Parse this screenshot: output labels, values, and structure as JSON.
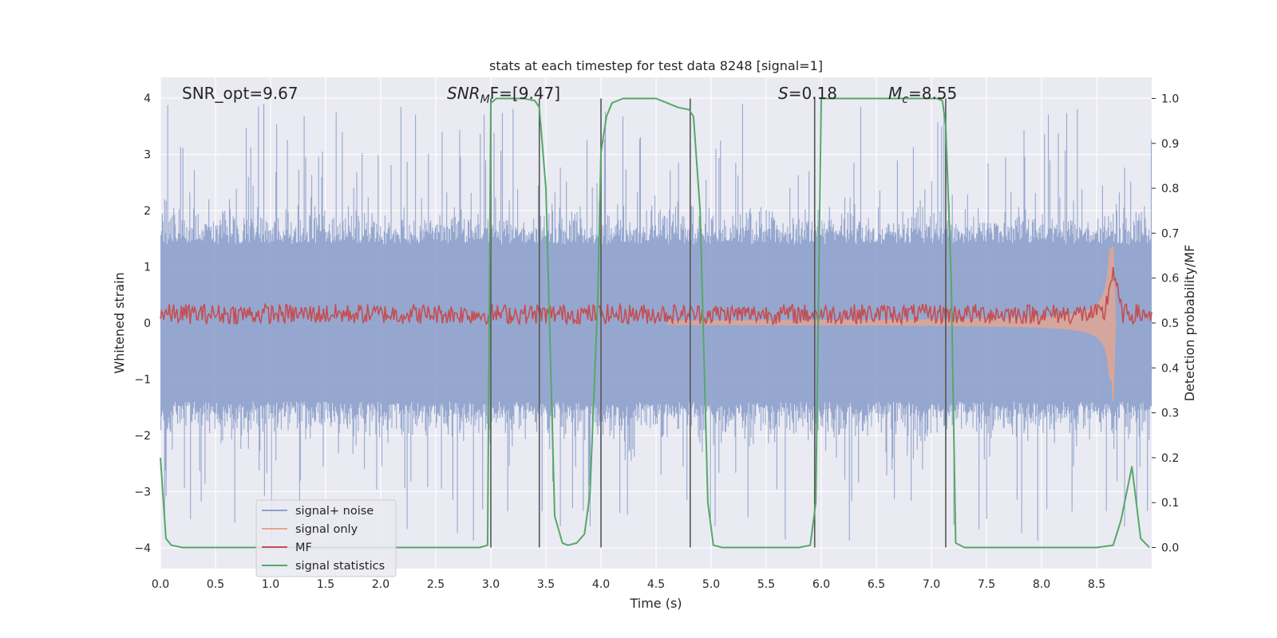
{
  "chart_data": {
    "type": "line",
    "title": "stats at each timestep for test data 8248 [signal=1]",
    "xlabel": "Time (s)",
    "ylabel_left": "Whitened strain",
    "ylabel_right": "Detection probability/MF",
    "xlim": [
      0.0,
      9.0
    ],
    "ylim_left": [
      -4.37,
      4.37
    ],
    "ylim_right": [
      -0.047,
      1.047
    ],
    "xticks": [
      "0.0",
      "0.5",
      "1.0",
      "1.5",
      "2.0",
      "2.5",
      "3.0",
      "3.5",
      "4.0",
      "4.5",
      "5.0",
      "5.5",
      "6.0",
      "6.5",
      "7.0",
      "7.5",
      "8.0",
      "8.5"
    ],
    "yticks_left": [
      "−4",
      "−3",
      "−2",
      "−1",
      "0",
      "1",
      "2",
      "3",
      "4"
    ],
    "yticks_right": [
      "0.0",
      "0.1",
      "0.2",
      "0.3",
      "0.4",
      "0.5",
      "0.6",
      "0.7",
      "0.8",
      "0.9",
      "1.0"
    ],
    "annotations": {
      "snr_opt": "SNR_opt=9.67",
      "snr_mf_main": "SNR",
      "snr_mf_sub": "M",
      "snr_mf_rest": "F=[9.47]",
      "s_main": "S",
      "s_rest": "=0.18",
      "mc_main": "M",
      "mc_sub": "c",
      "mc_rest": "=8.55"
    },
    "vlines_x": [
      3.0,
      3.44,
      4.0,
      4.81,
      5.94,
      7.13
    ],
    "series": [
      {
        "name": "signal+ noise",
        "axis": "left",
        "color": "#8da0cb",
        "description": "whitened noisy strain, roughly ±2 with spikes to ±4"
      },
      {
        "name": "signal only",
        "axis": "left",
        "color": "#e8a58c",
        "chirp_end_time": 8.65,
        "chirp_peak": 1.35
      },
      {
        "name": "MF",
        "axis": "right",
        "color": "#c44e52",
        "baseline": 0.52,
        "peak_time": 8.65,
        "peak_value": 0.62
      },
      {
        "name": "signal statistics",
        "axis": "right",
        "color": "#55a868",
        "x": [
          0.0,
          0.05,
          0.1,
          0.2,
          0.3,
          0.4,
          0.5,
          0.6,
          0.7,
          0.8,
          0.9,
          1.0,
          1.5,
          2.0,
          2.5,
          2.9,
          2.97,
          3.0,
          3.05,
          3.1,
          3.2,
          3.3,
          3.4,
          3.44,
          3.5,
          3.58,
          3.65,
          3.7,
          3.78,
          3.85,
          3.9,
          3.97,
          4.0,
          4.05,
          4.1,
          4.2,
          4.3,
          4.4,
          4.5,
          4.6,
          4.7,
          4.8,
          4.84,
          4.9,
          4.97,
          5.02,
          5.1,
          5.5,
          5.8,
          5.9,
          5.95,
          6.0,
          6.2,
          6.5,
          6.8,
          7.0,
          7.05,
          7.1,
          7.13,
          7.18,
          7.22,
          7.3,
          7.6,
          8.0,
          8.5,
          8.65,
          8.72,
          8.82,
          8.9,
          8.98
        ],
        "y": [
          0.2,
          0.02,
          0.005,
          0.0,
          0.0,
          0.0,
          0.0,
          0.0,
          0.0,
          0.0,
          0.0,
          0.0,
          0.0,
          0.0,
          0.0,
          0.0,
          0.005,
          0.99,
          1.0,
          1.0,
          1.0,
          1.0,
          0.995,
          0.98,
          0.8,
          0.07,
          0.01,
          0.005,
          0.01,
          0.03,
          0.12,
          0.55,
          0.88,
          0.96,
          0.99,
          1.0,
          1.0,
          1.0,
          1.0,
          0.99,
          0.98,
          0.975,
          0.96,
          0.75,
          0.1,
          0.005,
          0.0,
          0.0,
          0.0,
          0.005,
          0.1,
          1.0,
          1.0,
          1.0,
          1.0,
          1.0,
          1.0,
          0.995,
          0.94,
          0.6,
          0.01,
          0.0,
          0.0,
          0.0,
          0.0,
          0.005,
          0.06,
          0.18,
          0.02,
          0.0
        ]
      }
    ],
    "legend": {
      "position": "lower-left",
      "entries": [
        "signal+ noise",
        "signal only",
        "MF",
        "signal statistics"
      ]
    },
    "grid": true
  }
}
